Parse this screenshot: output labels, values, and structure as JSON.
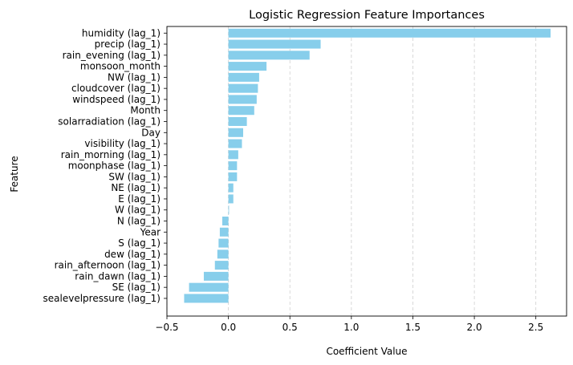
{
  "chart_data": {
    "type": "bar",
    "orientation": "horizontal",
    "title": "Logistic Regression Feature Importances",
    "xlabel": "Coefficient Value",
    "ylabel": "Feature",
    "xlim": [
      -0.5,
      2.75
    ],
    "xticks": [
      -0.5,
      0.0,
      0.5,
      1.0,
      1.5,
      2.0,
      2.5
    ],
    "xtick_labels": [
      "−0.5",
      "0.0",
      "0.5",
      "1.0",
      "1.5",
      "2.0",
      "2.5"
    ],
    "grid": "x-dashed",
    "bar_color": "#87CEEB",
    "categories": [
      "humidity (lag_1)",
      "precip (lag_1)",
      "rain_evening (lag_1)",
      "monsoon_month",
      "NW (lag_1)",
      "cloudcover (lag_1)",
      "windspeed (lag_1)",
      "Month",
      "solarradiation (lag_1)",
      "Day",
      "visibility (lag_1)",
      "rain_morning (lag_1)",
      "moonphase (lag_1)",
      "SW (lag_1)",
      "NE (lag_1)",
      "E (lag_1)",
      "W (lag_1)",
      "N (lag_1)",
      "Year",
      "S (lag_1)",
      "dew (lag_1)",
      "rain_afternoon (lag_1)",
      "rain_dawn (lag_1)",
      "SE (lag_1)",
      "sealevelpressure (lag_1)"
    ],
    "values": [
      2.62,
      0.75,
      0.66,
      0.31,
      0.25,
      0.24,
      0.23,
      0.21,
      0.15,
      0.12,
      0.11,
      0.08,
      0.07,
      0.07,
      0.04,
      0.04,
      0.005,
      -0.05,
      -0.07,
      -0.08,
      -0.09,
      -0.11,
      -0.2,
      -0.32,
      -0.36
    ]
  }
}
